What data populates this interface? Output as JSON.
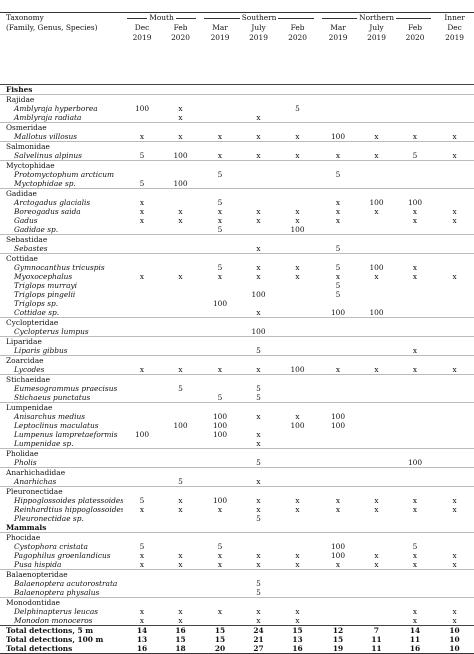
{
  "header": {
    "title": "Taxonomy",
    "subtitle": "(Family, Genus, Species)",
    "groups": [
      {
        "name": "Mouth",
        "columns": [
          {
            "month": "Dec",
            "year": "2019"
          },
          {
            "month": "Feb",
            "year": "2020"
          }
        ]
      },
      {
        "name": "Southern",
        "columns": [
          {
            "month": "Mar",
            "year": "2019"
          },
          {
            "month": "July",
            "year": "2019"
          },
          {
            "month": "Feb",
            "year": "2020"
          }
        ]
      },
      {
        "name": "Northern",
        "columns": [
          {
            "month": "Mar",
            "year": "2019"
          },
          {
            "month": "July",
            "year": "2019"
          },
          {
            "month": "Feb",
            "year": "2020"
          }
        ]
      },
      {
        "name": "Inner",
        "columns": [
          {
            "month": "Dec",
            "year": "2019"
          }
        ]
      }
    ]
  },
  "sections": [
    {
      "title": "Fishes",
      "families": [
        {
          "name": "Rajidae",
          "taxa": [
            {
              "name": "Amblyraja hyperborea",
              "cells": [
                100,
                "x",
                null,
                null,
                5,
                null,
                null,
                null,
                null
              ]
            },
            {
              "name": "Amblyraja radiata",
              "cells": [
                null,
                "x",
                null,
                "x",
                null,
                null,
                null,
                null,
                null
              ]
            }
          ]
        },
        {
          "name": "Osmeridae",
          "taxa": [
            {
              "name": "Mallotus villosus",
              "cells": [
                "x",
                "x",
                "x",
                "x",
                "x",
                100,
                "x",
                "x",
                "x"
              ]
            }
          ]
        },
        {
          "name": "Salmonidae",
          "taxa": [
            {
              "name": "Salvelinus alpinus",
              "cells": [
                5,
                100,
                "x",
                "x",
                "x",
                "x",
                "x",
                5,
                "x"
              ]
            }
          ]
        },
        {
          "name": "Myctophidae",
          "taxa": [
            {
              "name": "Protomyctophum arcticum",
              "cells": [
                null,
                null,
                5,
                null,
                null,
                5,
                null,
                null,
                null
              ]
            },
            {
              "name": "Myctophidae sp.",
              "cells": [
                5,
                100,
                null,
                null,
                null,
                null,
                null,
                null,
                null
              ]
            }
          ]
        },
        {
          "name": "Gadidae",
          "taxa": [
            {
              "name": "Arctogadus glacialis",
              "cells": [
                "x",
                null,
                5,
                null,
                null,
                "x",
                100,
                100,
                null
              ]
            },
            {
              "name": "Boreogadus saida",
              "cells": [
                "x",
                "x",
                "x",
                "x",
                "x",
                "x",
                "x",
                "x",
                "x"
              ]
            },
            {
              "name": "Gadus",
              "cells": [
                "x",
                "x",
                "x",
                "x",
                "x",
                "x",
                null,
                "x",
                "x"
              ]
            },
            {
              "name": "Gadidae sp.",
              "cells": [
                null,
                null,
                5,
                null,
                100,
                null,
                null,
                null,
                null
              ]
            }
          ]
        },
        {
          "name": "Sebastidae",
          "taxa": [
            {
              "name": "Sebastes",
              "cells": [
                null,
                null,
                null,
                "x",
                null,
                5,
                null,
                null,
                null
              ]
            }
          ]
        },
        {
          "name": "Cottidae",
          "taxa": [
            {
              "name": "Gymnocanthus tricuspis",
              "cells": [
                null,
                null,
                5,
                "x",
                "x",
                5,
                100,
                "x",
                null
              ]
            },
            {
              "name": "Myoxocephalus",
              "cells": [
                "x",
                "x",
                "x",
                "x",
                "x",
                "x",
                "x",
                "x",
                "x"
              ]
            },
            {
              "name": "Triglops murrayi",
              "cells": [
                null,
                null,
                null,
                null,
                null,
                5,
                null,
                null,
                null
              ]
            },
            {
              "name": "Triglops pingelii",
              "cells": [
                null,
                null,
                null,
                100,
                null,
                5,
                null,
                null,
                null
              ]
            },
            {
              "name": "Triglops sp.",
              "cells": [
                null,
                null,
                100,
                null,
                null,
                null,
                null,
                null,
                null
              ]
            },
            {
              "name": "Cottidae sp.",
              "cells": [
                null,
                null,
                null,
                "x",
                null,
                100,
                100,
                null,
                null
              ]
            }
          ]
        },
        {
          "name": "Cyclopteridae",
          "taxa": [
            {
              "name": "Cyclopterus lumpus",
              "cells": [
                null,
                null,
                null,
                100,
                null,
                null,
                null,
                null,
                null
              ]
            }
          ]
        },
        {
          "name": "Liparidae",
          "taxa": [
            {
              "name": "Liparis gibbus",
              "cells": [
                null,
                null,
                null,
                5,
                null,
                null,
                null,
                "x",
                null
              ]
            }
          ]
        },
        {
          "name": "Zoarcidae",
          "taxa": [
            {
              "name": "Lycodes",
              "cells": [
                "x",
                "x",
                "x",
                "x",
                100,
                "x",
                "x",
                "x",
                "x"
              ]
            }
          ]
        },
        {
          "name": "Stichaeidae",
          "taxa": [
            {
              "name": "Eumesogrammus praecisus",
              "cells": [
                null,
                5,
                null,
                5,
                null,
                null,
                null,
                null,
                null
              ]
            },
            {
              "name": "Stichaeus punctatus",
              "cells": [
                null,
                null,
                5,
                5,
                null,
                null,
                null,
                null,
                null
              ]
            }
          ]
        },
        {
          "name": "Lumpenidae",
          "taxa": [
            {
              "name": "Anisarchus medius",
              "cells": [
                null,
                null,
                100,
                "x",
                "x",
                100,
                null,
                null,
                null
              ]
            },
            {
              "name": "Leptoclinus maculatus",
              "cells": [
                null,
                100,
                100,
                null,
                100,
                100,
                null,
                null,
                null
              ]
            },
            {
              "name": "Lumpenus lampretaeformis",
              "cells": [
                100,
                null,
                100,
                "x",
                null,
                null,
                null,
                null,
                null
              ]
            },
            {
              "name": "Lumpenidae sp.",
              "cells": [
                null,
                null,
                null,
                "x",
                null,
                null,
                null,
                null,
                null
              ]
            }
          ]
        },
        {
          "name": "Pholidae",
          "taxa": [
            {
              "name": "Pholis",
              "cells": [
                null,
                null,
                null,
                5,
                null,
                null,
                null,
                100,
                null
              ]
            }
          ]
        },
        {
          "name": "Anarhichadidae",
          "taxa": [
            {
              "name": "Anarhichas",
              "cells": [
                null,
                5,
                null,
                "x",
                null,
                null,
                null,
                null,
                null
              ]
            }
          ]
        },
        {
          "name": "Pleuronectidae",
          "taxa": [
            {
              "name": "Hippoglossoides platessoides",
              "cells": [
                5,
                "x",
                100,
                "x",
                "x",
                "x",
                "x",
                "x",
                "x"
              ]
            },
            {
              "name": "Reinhardtius hippoglossoides",
              "cells": [
                "x",
                "x",
                "x",
                "x",
                "x",
                "x",
                "x",
                "x",
                "x"
              ]
            },
            {
              "name": "Pleuronectidae sp.",
              "cells": [
                null,
                null,
                null,
                5,
                null,
                null,
                null,
                null,
                null
              ]
            }
          ]
        }
      ]
    },
    {
      "title": "Mammals",
      "families": [
        {
          "name": "Phocidae",
          "taxa": [
            {
              "name": "Cystophora cristata",
              "cells": [
                5,
                null,
                5,
                null,
                null,
                100,
                null,
                5,
                null
              ]
            },
            {
              "name": "Pagophilus groenlandicus",
              "cells": [
                "x",
                "x",
                "x",
                "x",
                "x",
                100,
                "x",
                "x",
                "x"
              ]
            },
            {
              "name": "Pusa hispida",
              "cells": [
                "x",
                "x",
                "x",
                "x",
                "x",
                "x",
                "x",
                "x",
                "x"
              ]
            }
          ]
        },
        {
          "name": "Balaenopteridae",
          "taxa": [
            {
              "name": "Balaenoptera acutorostrata",
              "cells": [
                null,
                null,
                null,
                5,
                null,
                null,
                null,
                null,
                null
              ]
            },
            {
              "name": "Balaenoptera physalus",
              "cells": [
                null,
                null,
                null,
                5,
                null,
                null,
                null,
                null,
                null
              ]
            }
          ]
        },
        {
          "name": "Monodontidae",
          "taxa": [
            {
              "name": "Delphinapterus leucas",
              "cells": [
                "x",
                "x",
                "x",
                "x",
                "x",
                null,
                null,
                "x",
                "x"
              ]
            },
            {
              "name": "Monodon monoceros",
              "cells": [
                "x",
                "x",
                null,
                "x",
                "x",
                null,
                null,
                "x",
                "x"
              ]
            }
          ]
        }
      ]
    }
  ],
  "totals": [
    {
      "label": "Total detections, 5 m",
      "cells": [
        14,
        16,
        15,
        24,
        15,
        12,
        7,
        14,
        10
      ]
    },
    {
      "label": "Total detections, 100 m",
      "cells": [
        13,
        15,
        15,
        21,
        13,
        15,
        11,
        11,
        10
      ]
    },
    {
      "label": "Total detections",
      "cells": [
        16,
        18,
        20,
        27,
        16,
        19,
        11,
        16,
        10
      ]
    }
  ]
}
